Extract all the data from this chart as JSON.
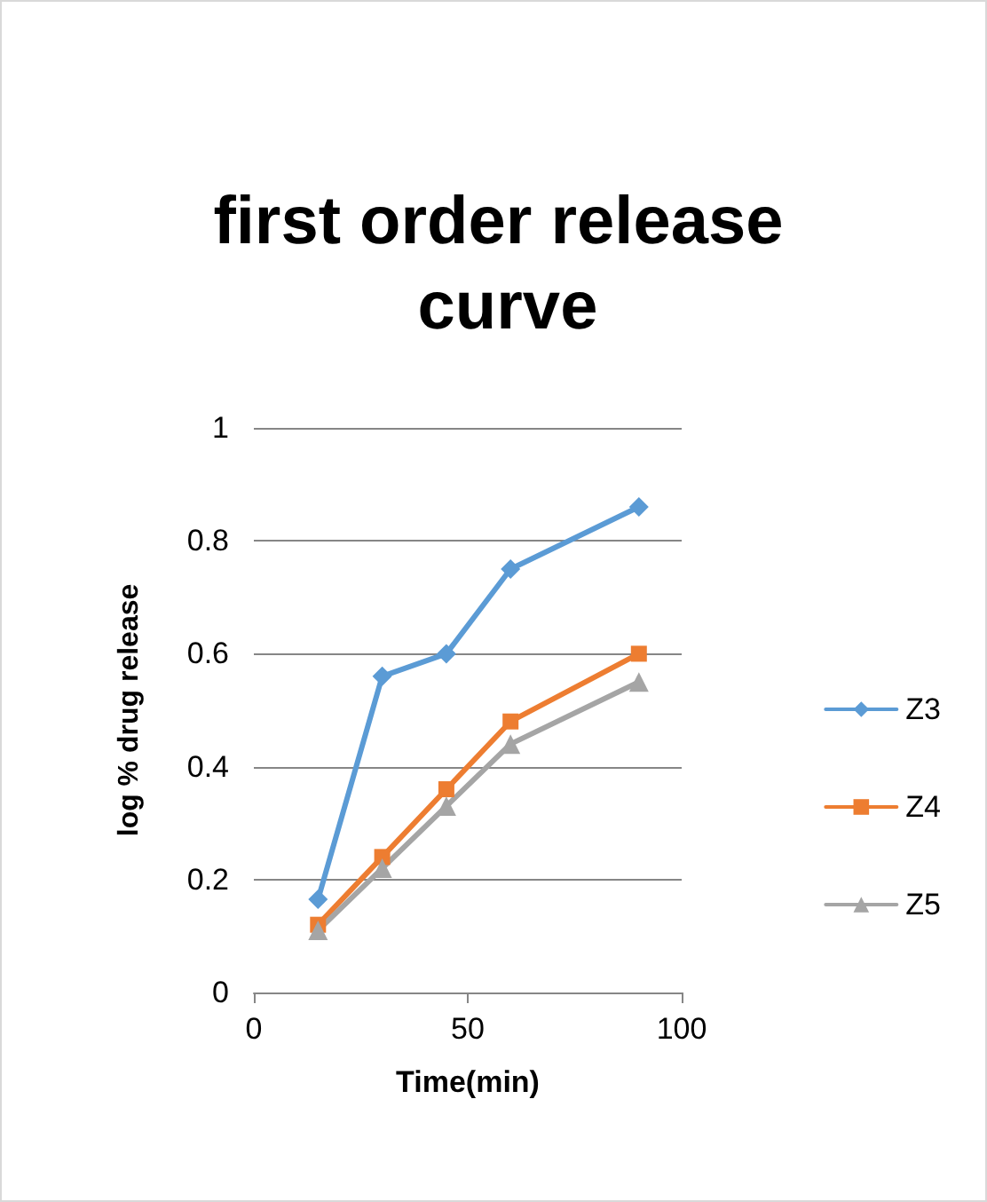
{
  "chart_data": {
    "type": "line",
    "title": "first order release curve",
    "xlabel": "Time(min)",
    "ylabel": "log % drug release",
    "x": [
      15,
      30,
      45,
      60,
      90
    ],
    "series": [
      {
        "name": "Z3",
        "color": "#5b9bd5",
        "marker": "diamond",
        "values": [
          0.165,
          0.56,
          0.6,
          0.75,
          0.86
        ]
      },
      {
        "name": "Z4",
        "color": "#ed7d31",
        "marker": "square",
        "values": [
          0.12,
          0.24,
          0.36,
          0.48,
          0.6
        ]
      },
      {
        "name": "Z5",
        "color": "#a5a5a5",
        "marker": "triangle",
        "values": [
          0.11,
          0.22,
          0.33,
          0.44,
          0.55
        ]
      }
    ],
    "xlim": [
      0,
      100
    ],
    "xticks": [
      0,
      50,
      100
    ],
    "ylim": [
      0,
      1
    ],
    "yticks": [
      0,
      0.2,
      0.4,
      0.6,
      0.8,
      1
    ],
    "grid": "y",
    "legend": "right",
    "line_style": "solid"
  }
}
